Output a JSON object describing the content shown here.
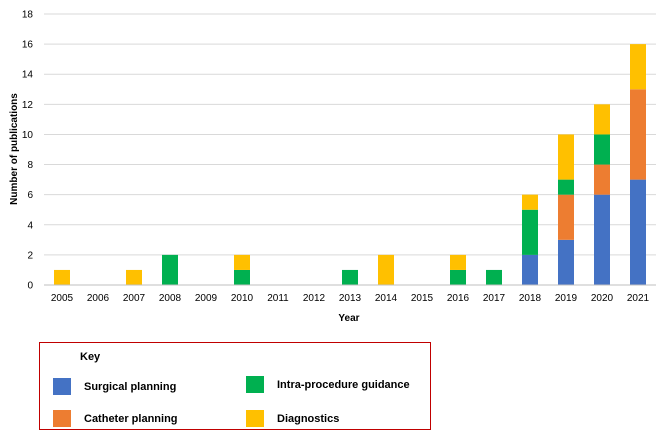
{
  "chart_data": {
    "type": "bar",
    "stacked": true,
    "categories": [
      "2005",
      "2006",
      "2007",
      "2008",
      "2009",
      "2010",
      "2011",
      "2012",
      "2013",
      "2014",
      "2015",
      "2016",
      "2017",
      "2018",
      "2019",
      "2020",
      "2021"
    ],
    "series": [
      {
        "name": "Surgical planning",
        "color": "#4472c4",
        "values": [
          0,
          0,
          0,
          0,
          0,
          0,
          0,
          0,
          0,
          0,
          0,
          0,
          0,
          2,
          3,
          6,
          7
        ]
      },
      {
        "name": "Catheter planning",
        "color": "#ed7d31",
        "values": [
          0,
          0,
          0,
          0,
          0,
          0,
          0,
          0,
          0,
          0,
          0,
          0,
          0,
          0,
          3,
          2,
          6
        ]
      },
      {
        "name": "Intra-procedure guidance",
        "color": "#00b050",
        "values": [
          0,
          0,
          0,
          2,
          0,
          1,
          0,
          0,
          1,
          0,
          0,
          1,
          1,
          3,
          1,
          2,
          0
        ]
      },
      {
        "name": "Diagnostics",
        "color": "#ffc000",
        "values": [
          1,
          0,
          1,
          0,
          0,
          1,
          0,
          0,
          0,
          2,
          0,
          1,
          0,
          1,
          3,
          2,
          3
        ]
      }
    ],
    "xlabel": "Year",
    "ylabel": "Number of publications",
    "ylim": [
      0,
      18
    ],
    "yticks": [
      0,
      2,
      4,
      6,
      8,
      10,
      12,
      14,
      16,
      18
    ],
    "grid": true,
    "legend": {
      "title": "Key",
      "placement": "bottom-left, boxed"
    }
  }
}
